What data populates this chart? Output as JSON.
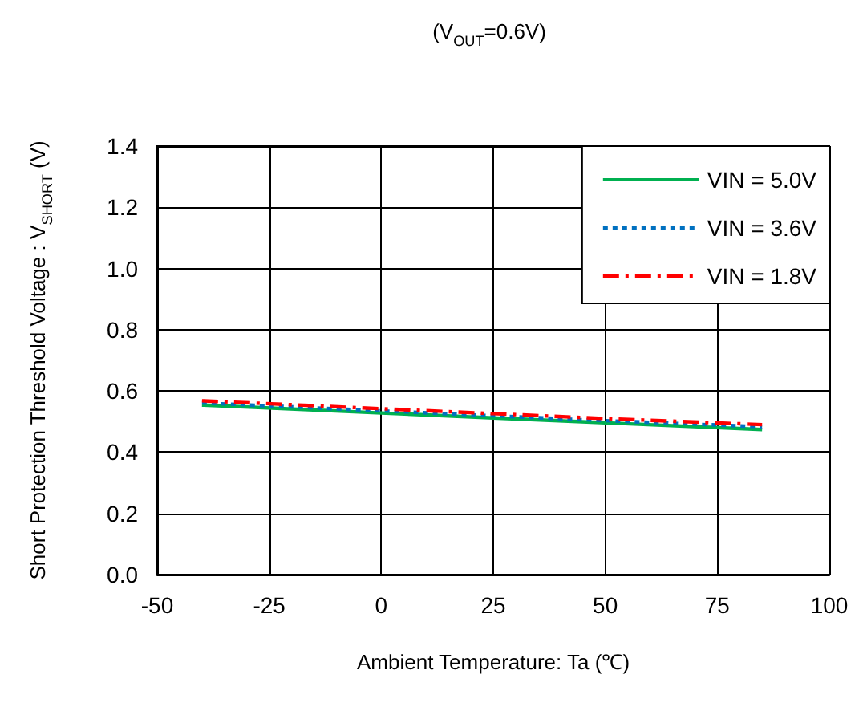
{
  "chart_data": {
    "type": "line",
    "title": "(V$_{OUT}$=0.6V)",
    "xlabel": "Ambient Temperature: Ta (℃)",
    "ylabel": "Short Protection Threshold Voltage : V$_{SHORT}$ (V)",
    "x": [
      -40,
      0,
      25,
      50,
      85
    ],
    "series": [
      {
        "name": "VIN = 5.0V",
        "color": "#00b050",
        "line_style": "solid",
        "values": [
          0.554,
          0.528,
          0.512,
          0.496,
          0.474
        ]
      },
      {
        "name": "VIN = 3.6V",
        "color": "#0070c0",
        "line_style": "dotted",
        "values": [
          0.561,
          0.535,
          0.519,
          0.503,
          0.483
        ]
      },
      {
        "name": "VIN = 1.8V",
        "color": "#ff0000",
        "line_style": "dashed",
        "values": [
          0.568,
          0.542,
          0.526,
          0.51,
          0.49
        ]
      }
    ],
    "xlim": [
      -50,
      100
    ],
    "xticks": [
      -50,
      -25,
      0,
      25,
      50,
      75,
      100
    ],
    "ylim": [
      0,
      1.4
    ],
    "yticks": [
      {
        "value": 0,
        "label": "0.0"
      },
      0.2,
      0.4,
      0.6,
      0.8,
      {
        "value": 1,
        "label": "1.0"
      },
      1.2,
      1.4
    ],
    "grid": true,
    "legend": "top right",
    "marker": "none"
  }
}
